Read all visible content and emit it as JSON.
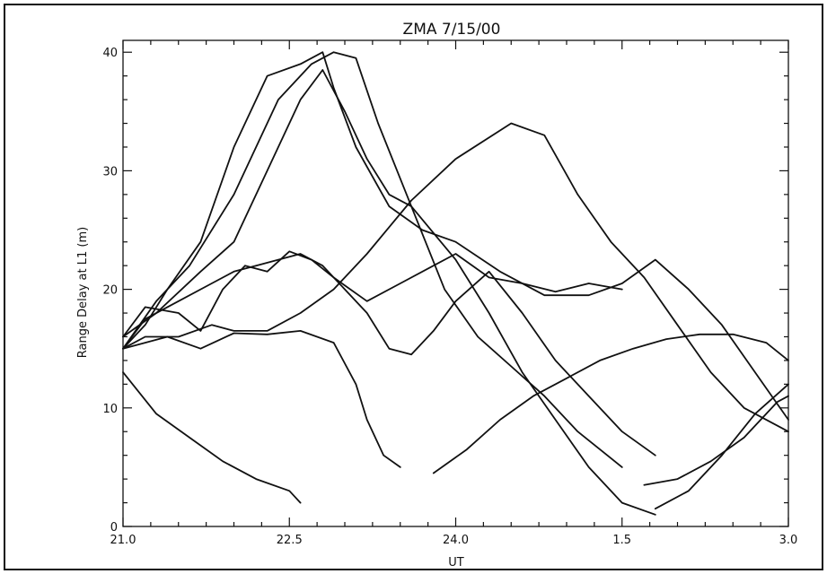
{
  "chart_data": {
    "type": "line",
    "title": "ZMA 7/15/00",
    "xlabel": "UT",
    "ylabel": "Range Delay at L1 (m)",
    "x_ticks": [
      "21.0",
      "22.5",
      "24.0",
      "1.5",
      "3.0"
    ],
    "x_tick_hours": [
      21.0,
      22.5,
      24.0,
      25.5,
      27.0
    ],
    "y_ticks": [
      "0",
      "10",
      "20",
      "30",
      "40"
    ],
    "xlim": [
      21.0,
      27.0
    ],
    "ylim": [
      0,
      41
    ],
    "grid": false,
    "legend": "none",
    "line_color": "#111111",
    "series": [
      {
        "x": [
          21.0,
          21.3,
          21.6,
          21.9,
          22.2,
          22.5,
          22.6
        ],
        "y": [
          13,
          9.5,
          7.5,
          5.5,
          4,
          3,
          2
        ]
      },
      {
        "x": [
          21.0,
          21.2,
          21.4,
          21.7,
          22.0,
          22.3,
          22.6,
          22.9,
          23.1,
          23.2,
          23.35,
          23.5
        ],
        "y": [
          15,
          15.5,
          16,
          15,
          16.3,
          16.2,
          16.5,
          15.5,
          12,
          9,
          6,
          5
        ]
      },
      {
        "x": [
          21.0,
          21.2,
          21.5,
          21.7,
          21.9,
          22.1,
          22.3,
          22.5,
          22.7,
          22.9,
          23.2,
          23.5,
          23.8,
          24.0,
          24.3,
          24.6,
          24.9,
          25.2,
          25.5
        ],
        "y": [
          16,
          18.5,
          18,
          16.5,
          20,
          22,
          21.5,
          23.2,
          22.5,
          21,
          19,
          20.5,
          22,
          23,
          21,
          20.5,
          19.8,
          20.5,
          20
        ]
      },
      {
        "x": [
          21.0,
          21.2,
          21.5,
          21.8,
          22.0,
          22.2,
          22.4,
          22.6,
          22.8,
          23.0,
          23.2,
          23.4,
          23.6,
          23.8,
          24.0,
          24.3,
          24.6,
          24.9,
          25.2,
          25.5,
          25.8
        ],
        "y": [
          15,
          17.5,
          19,
          20.5,
          21.5,
          22,
          22.5,
          23,
          22,
          20,
          18,
          15,
          14.5,
          16.5,
          19,
          21.5,
          18,
          14,
          11,
          8,
          6
        ]
      },
      {
        "x": [
          21.0,
          21.2,
          21.5,
          21.8,
          22.0,
          22.3,
          22.6,
          22.9,
          23.2,
          23.6,
          24.0,
          24.5,
          24.8,
          25.1,
          25.4,
          25.7,
          26.0,
          26.3,
          26.6,
          26.9,
          27.0
        ],
        "y": [
          15,
          16,
          16,
          17,
          16.5,
          16.5,
          18,
          20,
          23,
          27.5,
          31,
          34,
          33,
          28,
          24,
          21,
          17,
          13,
          10,
          8.5,
          8
        ]
      },
      {
        "x": [
          21.0,
          21.2,
          21.4,
          21.7,
          22.0,
          22.3,
          22.6,
          22.8,
          22.9,
          23.1,
          23.4,
          23.7,
          24.0,
          24.4,
          24.8,
          25.2,
          25.5,
          25.8,
          26.1,
          26.4,
          26.7,
          27.0
        ],
        "y": [
          15,
          17,
          20,
          24,
          32,
          38,
          39,
          40,
          37,
          32,
          27,
          25,
          24,
          21.5,
          19.5,
          19.5,
          20.5,
          22.5,
          20,
          17,
          13,
          9
        ]
      },
      {
        "x": [
          21.0,
          21.3,
          21.6,
          22.0,
          22.4,
          22.7,
          22.9,
          23.1,
          23.3,
          23.6,
          23.9,
          24.2,
          24.5,
          24.8,
          25.1,
          25.5
        ],
        "y": [
          15,
          19,
          22,
          28,
          36,
          39,
          40,
          39.5,
          34,
          27,
          20,
          16,
          13.5,
          11,
          8,
          5
        ]
      },
      {
        "x": [
          21.0,
          21.3,
          21.7,
          22.0,
          22.3,
          22.6,
          22.8,
          23.0,
          23.2,
          23.4,
          23.6,
          24.0,
          24.3,
          24.6,
          24.9,
          25.2,
          25.5,
          25.8
        ],
        "y": [
          16,
          18,
          21.5,
          24,
          30,
          36,
          38.5,
          35,
          31,
          28,
          27,
          22.5,
          18,
          13,
          9,
          5,
          2,
          1
        ]
      },
      {
        "x": [
          23.8,
          24.1,
          24.4,
          24.7,
          25.0,
          25.3,
          25.6,
          25.9,
          26.2,
          26.5,
          26.8,
          27.0
        ],
        "y": [
          4.5,
          6.5,
          9,
          11,
          12.5,
          14,
          15,
          15.8,
          16.2,
          16.2,
          15.5,
          14
        ]
      },
      {
        "x": [
          25.7,
          26.0,
          26.3,
          26.6,
          26.9,
          27.0
        ],
        "y": [
          3.5,
          4,
          5.5,
          7.5,
          10.5,
          11
        ]
      },
      {
        "x": [
          25.8,
          26.1,
          26.4,
          26.7,
          27.0
        ],
        "y": [
          1.5,
          3,
          6,
          9.5,
          12
        ]
      }
    ]
  }
}
